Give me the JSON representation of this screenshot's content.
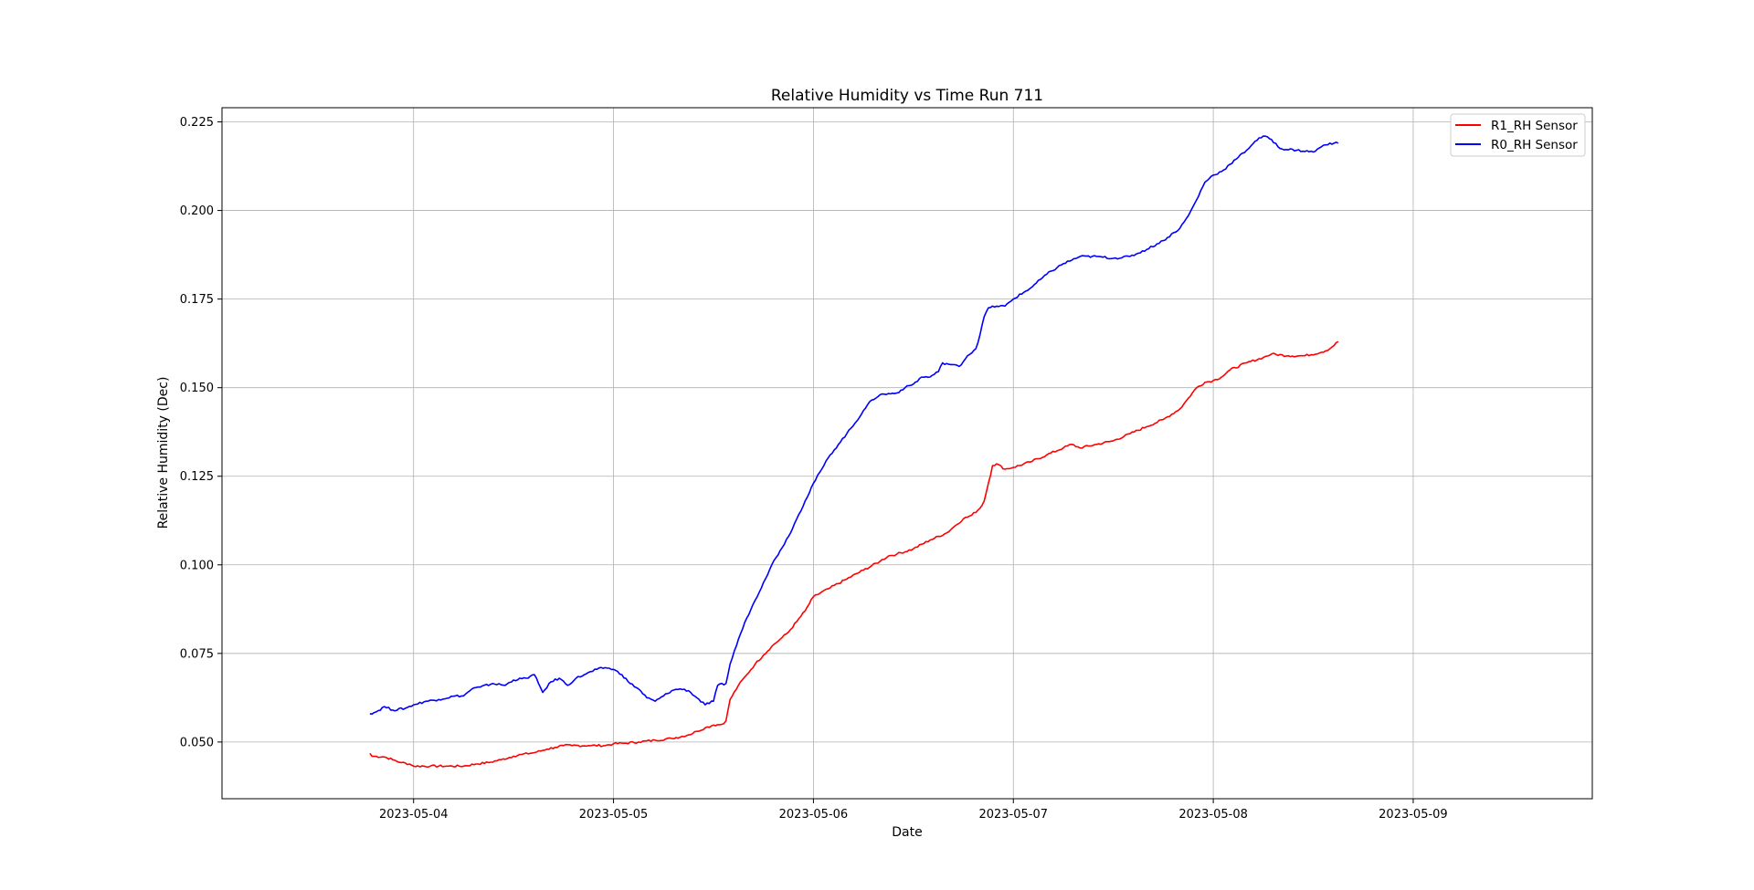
{
  "chart_data": {
    "type": "line",
    "title": "Relative Humidity vs Time Run 711",
    "xlabel": "Date",
    "ylabel": "Relative Humidity (Dec)",
    "xlim": [
      "2023-05-03 01:00",
      "2023-05-09 21:30"
    ],
    "ylim": [
      0.034,
      0.229
    ],
    "x_ticks": [
      "2023-05-04",
      "2023-05-05",
      "2023-05-06",
      "2023-05-07",
      "2023-05-08",
      "2023-05-09"
    ],
    "y_ticks": [
      "0.050",
      "0.075",
      "0.100",
      "0.125",
      "0.150",
      "0.175",
      "0.200",
      "0.225"
    ],
    "grid": true,
    "legend_position": "top-right",
    "series": [
      {
        "name": "R1_RH Sensor",
        "color": "#ff0000",
        "points": [
          [
            "2023-05-03 18:45",
            0.0468
          ],
          [
            "2023-05-03 19:00",
            0.046
          ],
          [
            "2023-05-03 20:30",
            0.0458
          ],
          [
            "2023-05-03 21:30",
            0.045
          ],
          [
            "2023-05-03 22:30",
            0.0442
          ],
          [
            "2023-05-03 23:30",
            0.0438
          ],
          [
            "2023-05-04 00:00",
            0.0432
          ],
          [
            "2023-05-04 02:00",
            0.0432
          ],
          [
            "2023-05-04 04:00",
            0.0432
          ],
          [
            "2023-05-04 06:00",
            0.0432
          ],
          [
            "2023-05-04 07:30",
            0.0438
          ],
          [
            "2023-05-04 09:00",
            0.0442
          ],
          [
            "2023-05-04 10:30",
            0.045
          ],
          [
            "2023-05-04 12:00",
            0.046
          ],
          [
            "2023-05-04 13:00",
            0.0465
          ],
          [
            "2023-05-04 14:30",
            0.047
          ],
          [
            "2023-05-04 16:00",
            0.048
          ],
          [
            "2023-05-04 17:00",
            0.0485
          ],
          [
            "2023-05-04 18:00",
            0.049
          ],
          [
            "2023-05-04 19:00",
            0.049
          ],
          [
            "2023-05-04 21:00",
            0.049
          ],
          [
            "2023-05-04 23:00",
            0.049
          ],
          [
            "2023-05-05 00:00",
            0.0495
          ],
          [
            "2023-05-05 01:30",
            0.0497
          ],
          [
            "2023-05-05 03:00",
            0.05
          ],
          [
            "2023-05-05 05:00",
            0.0505
          ],
          [
            "2023-05-05 07:00",
            0.051
          ],
          [
            "2023-05-05 09:00",
            0.052
          ],
          [
            "2023-05-05 10:00",
            0.053
          ],
          [
            "2023-05-05 11:00",
            0.054
          ],
          [
            "2023-05-05 12:00",
            0.0548
          ],
          [
            "2023-05-05 13:00",
            0.055
          ],
          [
            "2023-05-05 13:30",
            0.056
          ],
          [
            "2023-05-05 14:00",
            0.062
          ],
          [
            "2023-05-05 15:00",
            0.066
          ],
          [
            "2023-05-05 16:00",
            0.069
          ],
          [
            "2023-05-05 17:00",
            0.072
          ],
          [
            "2023-05-05 18:00",
            0.0745
          ],
          [
            "2023-05-05 19:00",
            0.077
          ],
          [
            "2023-05-05 20:00",
            0.079
          ],
          [
            "2023-05-05 21:00",
            0.081
          ],
          [
            "2023-05-05 22:00",
            0.084
          ],
          [
            "2023-05-05 23:00",
            0.087
          ],
          [
            "2023-05-06 00:00",
            0.091
          ],
          [
            "2023-05-06 02:00",
            0.0935
          ],
          [
            "2023-05-06 04:00",
            0.096
          ],
          [
            "2023-05-06 06:00",
            0.0985
          ],
          [
            "2023-05-06 08:00",
            0.101
          ],
          [
            "2023-05-06 09:00",
            0.1025
          ],
          [
            "2023-05-06 10:00",
            0.103
          ],
          [
            "2023-05-06 12:00",
            0.1045
          ],
          [
            "2023-05-06 14:00",
            0.107
          ],
          [
            "2023-05-06 16:00",
            0.109
          ],
          [
            "2023-05-06 17:00",
            0.111
          ],
          [
            "2023-05-06 18:00",
            0.113
          ],
          [
            "2023-05-06 19:00",
            0.114
          ],
          [
            "2023-05-06 20:00",
            0.116
          ],
          [
            "2023-05-06 20:30",
            0.118
          ],
          [
            "2023-05-06 21:00",
            0.123
          ],
          [
            "2023-05-06 21:30",
            0.128
          ],
          [
            "2023-05-06 22:00",
            0.1285
          ],
          [
            "2023-05-06 23:00",
            0.127
          ],
          [
            "2023-05-07 00:00",
            0.1275
          ],
          [
            "2023-05-07 02:00",
            0.129
          ],
          [
            "2023-05-07 04:00",
            0.131
          ],
          [
            "2023-05-07 06:00",
            0.133
          ],
          [
            "2023-05-07 07:00",
            0.134
          ],
          [
            "2023-05-07 08:00",
            0.133
          ],
          [
            "2023-05-07 10:00",
            0.134
          ],
          [
            "2023-05-07 12:00",
            0.135
          ],
          [
            "2023-05-07 14:00",
            0.137
          ],
          [
            "2023-05-07 16:00",
            0.139
          ],
          [
            "2023-05-07 18:00",
            0.141
          ],
          [
            "2023-05-07 20:00",
            0.144
          ],
          [
            "2023-05-07 21:00",
            0.147
          ],
          [
            "2023-05-07 22:00",
            0.15
          ],
          [
            "2023-05-07 23:00",
            0.1515
          ],
          [
            "2023-05-08 00:00",
            0.152
          ],
          [
            "2023-05-08 01:00",
            0.153
          ],
          [
            "2023-05-08 02:00",
            0.155
          ],
          [
            "2023-05-08 04:00",
            0.157
          ],
          [
            "2023-05-08 06:00",
            0.1585
          ],
          [
            "2023-05-08 07:00",
            0.1595
          ],
          [
            "2023-05-08 09:00",
            0.159
          ],
          [
            "2023-05-08 11:00",
            0.159
          ],
          [
            "2023-05-08 13:00",
            0.16
          ],
          [
            "2023-05-08 14:00",
            0.161
          ],
          [
            "2023-05-08 15:00",
            0.163
          ],
          [
            "2023-05-08 14:00",
            0.161
          ]
        ]
      },
      {
        "name": "R0_RH Sensor",
        "color": "#0000ff",
        "points": [
          [
            "2023-05-03 18:45",
            0.058
          ],
          [
            "2023-05-03 19:30",
            0.0585
          ],
          [
            "2023-05-03 20:30",
            0.06
          ],
          [
            "2023-05-03 21:30",
            0.059
          ],
          [
            "2023-05-03 23:00",
            0.0595
          ],
          [
            "2023-05-04 00:00",
            0.0605
          ],
          [
            "2023-05-04 01:30",
            0.0615
          ],
          [
            "2023-05-04 03:00",
            0.062
          ],
          [
            "2023-05-04 05:00",
            0.063
          ],
          [
            "2023-05-04 06:00",
            0.063
          ],
          [
            "2023-05-04 07:00",
            0.065
          ],
          [
            "2023-05-04 08:00",
            0.0655
          ],
          [
            "2023-05-04 09:30",
            0.0665
          ],
          [
            "2023-05-04 11:00",
            0.066
          ],
          [
            "2023-05-04 12:00",
            0.0675
          ],
          [
            "2023-05-04 13:30",
            0.068
          ],
          [
            "2023-05-04 14:30",
            0.069
          ],
          [
            "2023-05-04 15:00",
            0.0665
          ],
          [
            "2023-05-04 15:30",
            0.064
          ],
          [
            "2023-05-04 16:30",
            0.067
          ],
          [
            "2023-05-04 17:30",
            0.068
          ],
          [
            "2023-05-04 18:30",
            0.066
          ],
          [
            "2023-05-04 19:30",
            0.068
          ],
          [
            "2023-05-04 20:30",
            0.069
          ],
          [
            "2023-05-04 22:00",
            0.0705
          ],
          [
            "2023-05-04 23:00",
            0.071
          ],
          [
            "2023-05-05 00:00",
            0.0705
          ],
          [
            "2023-05-05 01:00",
            0.069
          ],
          [
            "2023-05-05 02:00",
            0.0665
          ],
          [
            "2023-05-05 03:00",
            0.065
          ],
          [
            "2023-05-05 04:00",
            0.0625
          ],
          [
            "2023-05-05 05:00",
            0.0615
          ],
          [
            "2023-05-05 06:00",
            0.063
          ],
          [
            "2023-05-05 07:00",
            0.0645
          ],
          [
            "2023-05-05 08:00",
            0.065
          ],
          [
            "2023-05-05 09:00",
            0.0645
          ],
          [
            "2023-05-05 10:00",
            0.0625
          ],
          [
            "2023-05-05 11:00",
            0.0605
          ],
          [
            "2023-05-05 12:00",
            0.0615
          ],
          [
            "2023-05-05 12:30",
            0.066
          ],
          [
            "2023-05-05 13:30",
            0.0665
          ],
          [
            "2023-05-05 14:00",
            0.072
          ],
          [
            "2023-05-05 15:00",
            0.079
          ],
          [
            "2023-05-05 16:00",
            0.085
          ],
          [
            "2023-05-05 17:00",
            0.09
          ],
          [
            "2023-05-05 18:00",
            0.095
          ],
          [
            "2023-05-05 19:00",
            0.1
          ],
          [
            "2023-05-05 20:00",
            0.104
          ],
          [
            "2023-05-05 21:00",
            0.108
          ],
          [
            "2023-05-05 22:00",
            0.113
          ],
          [
            "2023-05-05 23:00",
            0.118
          ],
          [
            "2023-05-06 00:00",
            0.123
          ],
          [
            "2023-05-06 01:00",
            0.127
          ],
          [
            "2023-05-06 02:00",
            0.131
          ],
          [
            "2023-05-06 03:00",
            0.134
          ],
          [
            "2023-05-06 04:00",
            0.137
          ],
          [
            "2023-05-06 05:00",
            0.14
          ],
          [
            "2023-05-06 06:00",
            0.1435
          ],
          [
            "2023-05-06 07:00",
            0.1465
          ],
          [
            "2023-05-06 08:00",
            0.148
          ],
          [
            "2023-05-06 10:00",
            0.1485
          ],
          [
            "2023-05-06 11:00",
            0.15
          ],
          [
            "2023-05-06 12:00",
            0.151
          ],
          [
            "2023-05-06 13:00",
            0.153
          ],
          [
            "2023-05-06 14:00",
            0.153
          ],
          [
            "2023-05-06 15:00",
            0.1545
          ],
          [
            "2023-05-06 15:30",
            0.157
          ],
          [
            "2023-05-06 16:30",
            0.1565
          ],
          [
            "2023-05-06 17:30",
            0.156
          ],
          [
            "2023-05-06 18:30",
            0.159
          ],
          [
            "2023-05-06 19:30",
            0.161
          ],
          [
            "2023-05-06 20:00",
            0.165
          ],
          [
            "2023-05-06 20:30",
            0.17
          ],
          [
            "2023-05-06 21:00",
            0.1725
          ],
          [
            "2023-05-06 22:00",
            0.173
          ],
          [
            "2023-05-06 23:00",
            0.173
          ],
          [
            "2023-05-07 00:00",
            0.175
          ],
          [
            "2023-05-07 02:00",
            0.178
          ],
          [
            "2023-05-07 04:00",
            0.182
          ],
          [
            "2023-05-07 06:00",
            0.185
          ],
          [
            "2023-05-07 08:00",
            0.187
          ],
          [
            "2023-05-07 10:00",
            0.187
          ],
          [
            "2023-05-07 12:00",
            0.1865
          ],
          [
            "2023-05-07 14:00",
            0.187
          ],
          [
            "2023-05-07 16:00",
            0.189
          ],
          [
            "2023-05-07 18:00",
            0.1915
          ],
          [
            "2023-05-07 20:00",
            0.195
          ],
          [
            "2023-05-07 21:00",
            0.1985
          ],
          [
            "2023-05-07 22:00",
            0.203
          ],
          [
            "2023-05-07 23:00",
            0.208
          ],
          [
            "2023-05-08 00:00",
            0.21
          ],
          [
            "2023-05-08 01:00",
            0.211
          ],
          [
            "2023-05-08 02:00",
            0.213
          ],
          [
            "2023-05-08 03:00",
            0.215
          ],
          [
            "2023-05-08 04:00",
            0.217
          ],
          [
            "2023-05-08 05:00",
            0.2195
          ],
          [
            "2023-05-08 06:00",
            0.221
          ],
          [
            "2023-05-08 07:00",
            0.22
          ],
          [
            "2023-05-08 08:00",
            0.2175
          ],
          [
            "2023-05-08 10:00",
            0.217
          ],
          [
            "2023-05-08 12:00",
            0.2165
          ],
          [
            "2023-05-08 13:00",
            0.218
          ],
          [
            "2023-05-08 14:00",
            0.219
          ],
          [
            "2023-05-08 15:00",
            0.219
          ]
        ]
      }
    ]
  }
}
